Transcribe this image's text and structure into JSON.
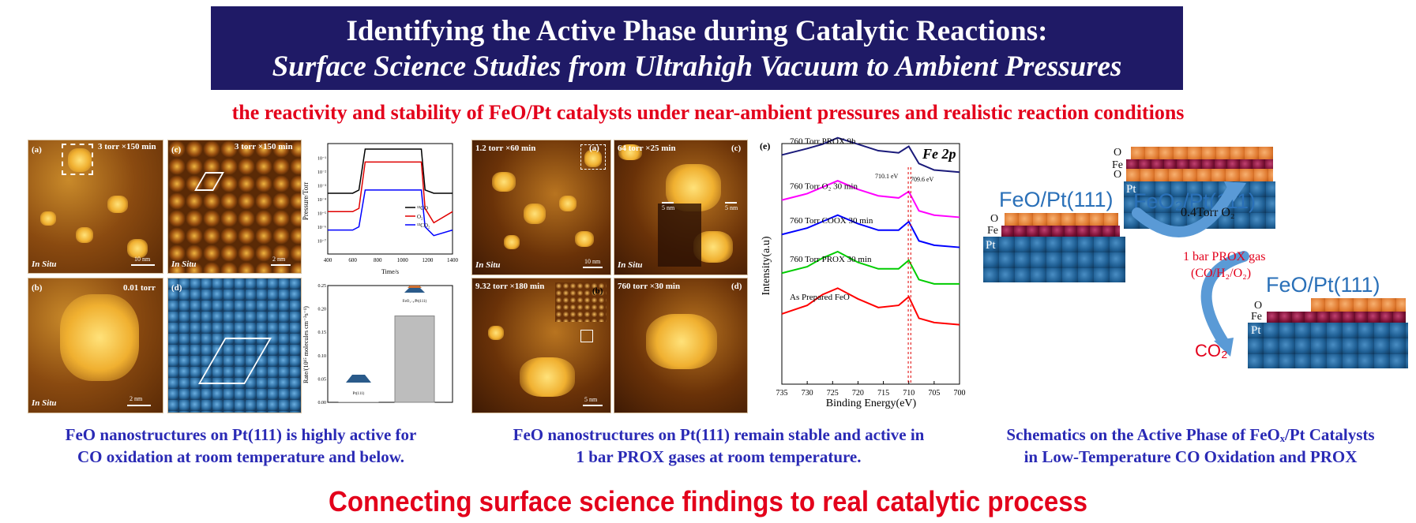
{
  "header": {
    "title_line1": "Identifying the Active Phase during Catalytic Reactions:",
    "title_line2": "Surface Science Studies from Ultrahigh Vacuum to Ambient Pressures",
    "subtitle": "the reactivity and stability of FeO/Pt catalysts under near-ambient pressures and realistic reaction conditions"
  },
  "colors": {
    "title_bg": "#1f1a66",
    "accent_red": "#e3001b",
    "caption_blue": "#2a2ab5"
  },
  "left_panels": {
    "a": {
      "label": "(a)",
      "condition": "3 torr ×150 min",
      "tag": "In Situ",
      "scale": "10 nm"
    },
    "b": {
      "label": "(b)",
      "condition": "0.01 torr",
      "tag": "In Situ",
      "scale": "2 nm"
    },
    "c": {
      "label": "(c)",
      "condition": "3 torr ×150 min",
      "tag": "In Situ",
      "scale": "2 nm"
    },
    "d": {
      "label": "(d)"
    }
  },
  "middle_panels": {
    "a": {
      "label": "(a)",
      "condition": "1.2 torr ×60 min",
      "tag": "In Situ",
      "scale": "10 nm"
    },
    "b": {
      "label": "(b)",
      "condition": "9.32 torr ×180 min",
      "scale": "5 nm"
    },
    "c": {
      "label": "(c)",
      "condition": "64 torr ×25 min",
      "tag": "In Situ",
      "scale": "5 nm",
      "inset_scale": "5 nm"
    },
    "d": {
      "label": "(d)",
      "condition": "760 torr ×30 min"
    }
  },
  "pressure_chart": {
    "ylabel": "Pressure/Torr",
    "xlabel": "Time/s",
    "y_ticks": [
      "10⁻¹",
      "10⁻²",
      "10⁻³",
      "10⁻⁴",
      "10⁻⁵",
      "10⁻⁶",
      "10⁻⁷"
    ],
    "x_ticks": [
      "400",
      "600",
      "800",
      "1000",
      "1200",
      "1400"
    ],
    "legend": [
      "¹³CO",
      "O₂",
      "¹³CO₂"
    ]
  },
  "rate_chart": {
    "ylabel": "Rate/(10¹⁵ molecules cm⁻²s⁻¹)",
    "y_ticks": [
      "0.25",
      "0.20",
      "0.15",
      "0.10",
      "0.05",
      "0.00"
    ],
    "bar_labels": [
      "Pt(111)",
      "FeO₁₋ₓ/Pt(111)"
    ]
  },
  "xps_chart": {
    "panel_label": "(e)",
    "title": "Fe 2p",
    "ylabel": "Intensity(a.u)",
    "xlabel": "Binding Energy(eV)",
    "x_ticks": [
      "735",
      "730",
      "725",
      "720",
      "715",
      "710",
      "705",
      "700"
    ],
    "peak1": "710.1 eV",
    "peak2": "709.6 eV",
    "series_labels": [
      "760 Torr PROX 9h",
      "760 Torr O₂ 30 min",
      "760 Torr COOX 30 min",
      "760 Torr PROX 30 min",
      "As Prepared FeO"
    ]
  },
  "chart_data": [
    {
      "type": "line",
      "title": "",
      "xlabel": "Time/s",
      "ylabel": "Pressure/Torr",
      "x": [
        400,
        600,
        650,
        700,
        1150,
        1180,
        1250,
        1400
      ],
      "series": [
        {
          "name": "13CO",
          "color": "#000000",
          "values": [
            0.0002,
            0.0002,
            0.0003,
            0.05,
            0.05,
            0.0003,
            0.0002,
            0.0002
          ]
        },
        {
          "name": "O2",
          "color": "#e00000",
          "values": [
            2e-05,
            2e-05,
            3e-05,
            0.01,
            0.01,
            3e-05,
            5e-06,
            2e-05
          ]
        },
        {
          "name": "13CO2",
          "color": "#0000ff",
          "values": [
            2e-06,
            2e-06,
            3e-06,
            0.0003,
            0.0003,
            3e-06,
            1e-06,
            2e-06
          ]
        }
      ],
      "xlim": [
        400,
        1400
      ],
      "ylim": [
        1e-07,
        0.1
      ],
      "yscale": "log"
    },
    {
      "type": "bar",
      "categories": [
        "Pt(111)",
        "FeO1-x/Pt(111)"
      ],
      "values": [
        0.0,
        0.185
      ],
      "ylabel": "Rate/(10^15 molecules cm-2s-1)",
      "ylim": [
        0,
        0.25
      ]
    },
    {
      "type": "line",
      "title": "Fe 2p",
      "xlabel": "Binding Energy(eV)",
      "ylabel": "Intensity(a.u)",
      "xlim": [
        735,
        700
      ],
      "x": [
        735,
        730,
        727,
        724,
        720,
        716,
        712,
        710,
        708,
        705,
        700
      ],
      "series": [
        {
          "name": "760 Torr PROX 9h",
          "color": "#1a1a7a",
          "values": [
            4.6,
            4.75,
            4.85,
            5.0,
            4.85,
            4.7,
            4.65,
            4.8,
            4.4,
            4.25,
            4.2
          ]
        },
        {
          "name": "760 Torr O2 30 min",
          "color": "#ff00ff",
          "values": [
            3.55,
            3.7,
            3.85,
            4.0,
            3.8,
            3.65,
            3.6,
            3.75,
            3.3,
            3.2,
            3.15
          ]
        },
        {
          "name": "760 Torr COOX 30 min",
          "color": "#0000ff",
          "values": [
            2.75,
            2.9,
            3.05,
            3.2,
            3.0,
            2.85,
            2.85,
            3.05,
            2.6,
            2.5,
            2.45
          ]
        },
        {
          "name": "760 Torr PROX 30 min",
          "color": "#00cc00",
          "values": [
            1.85,
            2.0,
            2.2,
            2.35,
            2.1,
            1.95,
            1.95,
            2.15,
            1.7,
            1.6,
            1.6
          ]
        },
        {
          "name": "As Prepared FeO",
          "color": "#ff0000",
          "values": [
            0.9,
            1.1,
            1.35,
            1.5,
            1.25,
            1.05,
            1.1,
            1.3,
            0.8,
            0.7,
            0.65
          ]
        }
      ],
      "markers_eV": [
        710.1,
        709.6
      ]
    }
  ],
  "schematic": {
    "feo_pt_left": "FeO/Pt(111)",
    "feo2_pt": "FeO₂/Pt(111)",
    "feo_pt_right": "FeO/Pt(111)",
    "o2_label": "0.4Torr O₂",
    "prox_label_1": "1 bar PROX gas",
    "prox_label_2": "(CO/H₂/O₂)",
    "co2_label": "CO₂",
    "layer_o": "O",
    "layer_fe": "Fe",
    "layer_pt": "Pt"
  },
  "captions": {
    "left_line1": "FeO nanostructures on Pt(111) is highly active for",
    "left_line2": "CO oxidation at room temperature and below.",
    "mid_line1": "FeO nanostructures on Pt(111) remain stable and active in",
    "mid_line2": "1 bar PROX gases at room temperature.",
    "right_line1": "Schematics on the Active Phase of FeOₓ/Pt Catalysts",
    "right_line2": "in Low-Temperature CO Oxidation and PROX"
  },
  "footer": "Connecting surface science findings to real catalytic process"
}
